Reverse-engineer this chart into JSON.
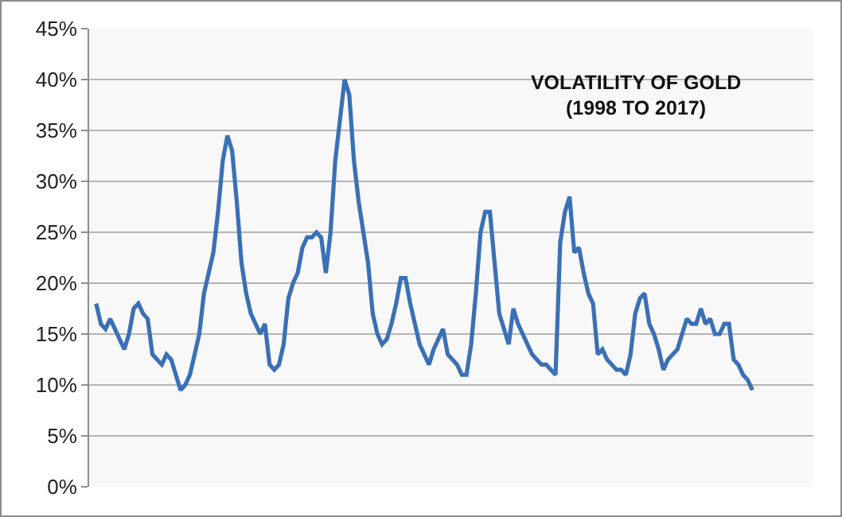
{
  "chart_data": {
    "type": "line",
    "title": "VOLATILITY OF GOLD\n(1998 TO 2017)",
    "categories": [
      null,
      null,
      null,
      null,
      null,
      null,
      null,
      null,
      null,
      null,
      null,
      null,
      null,
      null,
      null,
      null,
      null,
      null,
      null,
      null,
      null,
      null,
      null,
      null,
      null,
      null,
      null,
      null,
      null,
      null,
      null,
      null,
      null,
      null,
      null,
      null,
      null,
      null,
      null,
      null,
      null,
      null,
      null,
      null,
      null,
      null,
      null,
      null,
      null,
      null,
      null,
      null,
      null,
      null,
      null,
      null,
      null,
      null,
      null,
      null,
      null,
      null,
      null,
      null,
      null,
      null,
      null,
      null,
      null,
      null,
      null,
      null,
      null,
      null,
      null,
      null,
      null,
      null,
      null,
      null,
      null,
      null,
      null,
      null,
      null,
      null,
      null,
      null,
      null,
      null,
      null,
      null,
      null,
      null,
      null,
      null,
      null,
      null,
      null,
      null,
      null,
      null,
      null,
      null,
      null,
      null,
      null,
      null,
      null,
      null,
      null,
      null,
      null,
      null,
      null,
      null,
      null,
      null,
      null,
      null,
      null,
      null,
      null,
      null,
      null,
      null,
      null,
      null,
      null,
      null,
      null,
      null,
      null,
      null,
      null,
      null,
      null,
      null,
      null,
      null,
      null
    ],
    "series": [
      {
        "color": "#3a70b5",
        "values": [
          18,
          16,
          15.5,
          16.5,
          15.5,
          14.5,
          13.5,
          15,
          17.5,
          18,
          17,
          16.5,
          13,
          12.5,
          12,
          13,
          12.5,
          11,
          9.5,
          10,
          11,
          13,
          15,
          19,
          21,
          23,
          27,
          32,
          34.5,
          33,
          28,
          22,
          19,
          17,
          16,
          15,
          16,
          12,
          11.5,
          12,
          14,
          18.5,
          20,
          21,
          23.5,
          24.5,
          24.5,
          25,
          24.5,
          21,
          25,
          32,
          36,
          40,
          38.5,
          32,
          28,
          25,
          22,
          17,
          15,
          14,
          14.5,
          16,
          18,
          20.5,
          20.5,
          18,
          16,
          14,
          13,
          12,
          13.5,
          14.5,
          15.5,
          13,
          12.5,
          12,
          11,
          11,
          14,
          19,
          25,
          27,
          27,
          22,
          17,
          15.5,
          14,
          17.5,
          16,
          15,
          14,
          13,
          12.5,
          12,
          12,
          11.5,
          11,
          24,
          27,
          28.5,
          23,
          23.5,
          21,
          19,
          18,
          13,
          13.5,
          12.5,
          12,
          11.5,
          11.5,
          11,
          13,
          17,
          18.5,
          19,
          16,
          15,
          13.5,
          11.5,
          12.5,
          13,
          13.5,
          15,
          16.5,
          16,
          16,
          17.5,
          16,
          16.5,
          15,
          15,
          16,
          16,
          12.5,
          12,
          11,
          10.5,
          9.5
        ]
      }
    ],
    "ylim": [
      0,
      45
    ],
    "yticks": [
      {
        "value": 0,
        "label": "0%"
      },
      {
        "value": 5,
        "label": "5%"
      },
      {
        "value": 10,
        "label": "10%"
      },
      {
        "value": 15,
        "label": "15%"
      },
      {
        "value": 20,
        "label": "20%"
      },
      {
        "value": 25,
        "label": "25%"
      },
      {
        "value": 30,
        "label": "30%"
      },
      {
        "value": 35,
        "label": "35%"
      },
      {
        "value": 40,
        "label": "40%"
      },
      {
        "value": 45,
        "label": "45%"
      }
    ],
    "grid": "y",
    "marker": "none",
    "line_style": "solid"
  }
}
